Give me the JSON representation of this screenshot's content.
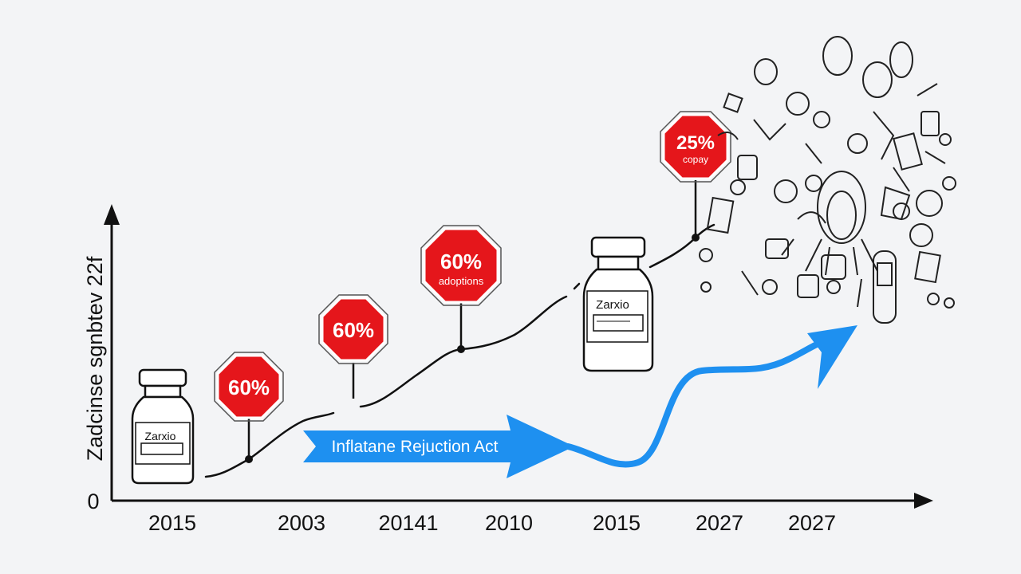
{
  "axis": {
    "y_label": "Zadcinse sgnbtev  22f",
    "y_zero": "0",
    "x_ticks": [
      "2015",
      "2003",
      "20141",
      "2010",
      "2015",
      "2027",
      "2027"
    ]
  },
  "signs": [
    {
      "value": "60%",
      "sub": ""
    },
    {
      "value": "60%",
      "sub": ""
    },
    {
      "value": "60%",
      "sub": "adoptions"
    },
    {
      "value": "25%",
      "sub": "copay"
    }
  ],
  "vials": [
    {
      "label": "Zarxio"
    },
    {
      "label": "Zarxio"
    }
  ],
  "banner": {
    "label": "Inflatane Rejuction Act"
  },
  "colors": {
    "sign": "#e5161b",
    "arrow": "#1e90f0",
    "line": "#111111",
    "background": "#f3f4f6"
  }
}
